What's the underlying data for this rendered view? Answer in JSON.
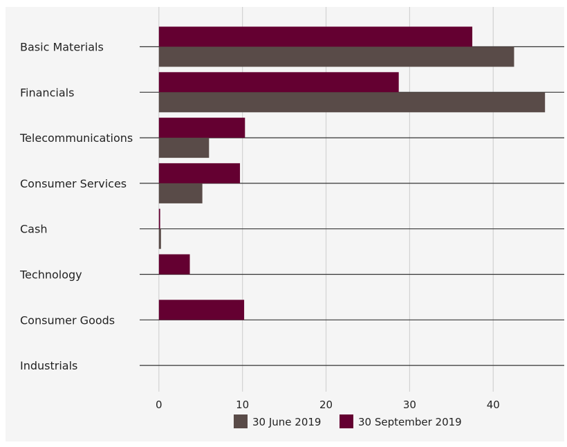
{
  "chart_data": {
    "type": "bar",
    "orientation": "horizontal",
    "categories": [
      "Basic Materials",
      "Financials",
      "Telecommunications",
      "Consumer Services",
      "Cash",
      "Technology",
      "Consumer Goods",
      "Industrials"
    ],
    "series": [
      {
        "name": "30 June 2019",
        "color": "#594b48",
        "values": [
          42.5,
          46.2,
          6.0,
          5.2,
          0.25,
          0,
          0,
          0
        ]
      },
      {
        "name": "30 September 2019",
        "color": "#640031",
        "values": [
          37.5,
          28.7,
          10.3,
          9.7,
          0.15,
          3.7,
          10.2,
          0
        ]
      }
    ],
    "xticks": [
      0,
      10,
      20,
      30,
      40
    ],
    "xlim": [
      -2.3,
      48.5
    ],
    "grid": true,
    "legend": "bottom",
    "title": "",
    "xlabel": "",
    "ylabel": ""
  }
}
